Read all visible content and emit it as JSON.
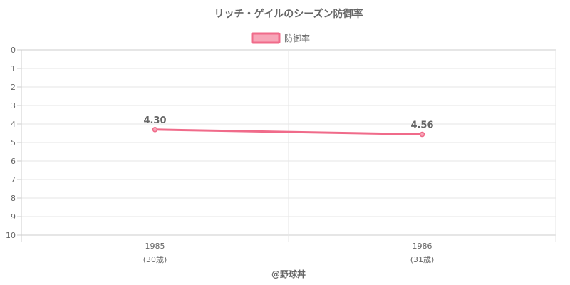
{
  "chart_data": {
    "type": "line",
    "title": "リッチ・ゲイルのシーズン防御率",
    "categories": [
      "1985",
      "1986"
    ],
    "category_sublabels": [
      "(30歳)",
      "(31歳)"
    ],
    "series": [
      {
        "name": "防御率",
        "values": [
          4.3,
          4.56
        ],
        "labels": [
          "4.30",
          "4.56"
        ]
      }
    ],
    "ylim": [
      0,
      10
    ],
    "y_reversed": true,
    "y_ticks": [
      "0",
      "1",
      "2",
      "3",
      "4",
      "5",
      "6",
      "7",
      "8",
      "9",
      "10"
    ],
    "grid": true,
    "legend_position": "top",
    "credit": "@野球丼",
    "colors": {
      "line": "#f06b8a",
      "legend_fill": "#f7a6b8",
      "grid": "#e6e6e6",
      "axis": "#cccccc"
    }
  }
}
